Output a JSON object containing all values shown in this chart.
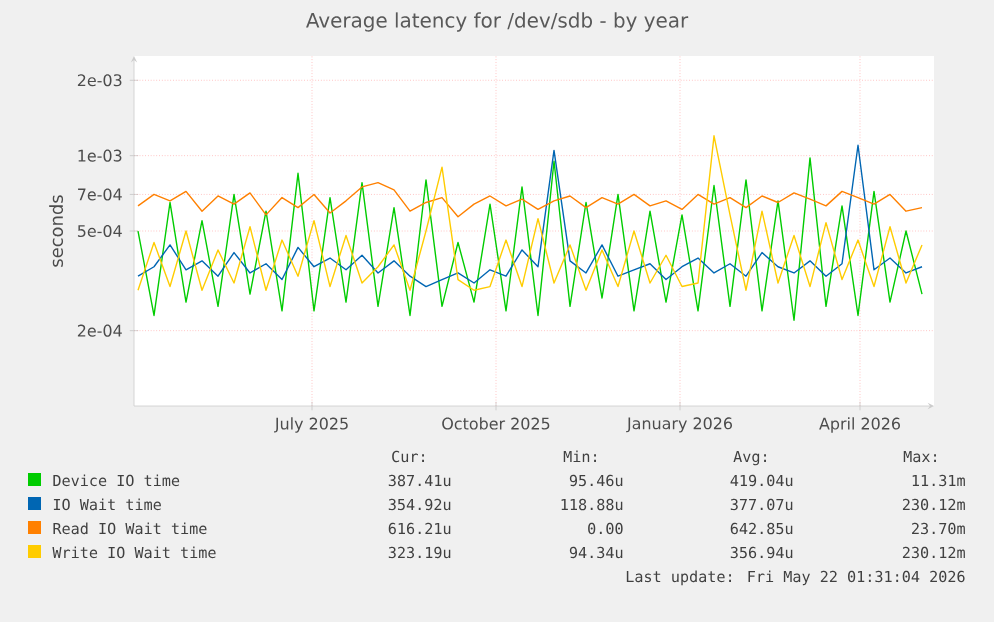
{
  "chart_data": {
    "type": "line",
    "title": "Average latency for /dev/sdb - by year",
    "ylabel": "seconds",
    "log": "y",
    "grid": true,
    "legend": "bottom",
    "line_style": "solid",
    "xlim": [
      "2025-04-03",
      "2026-05-08"
    ],
    "xticks": [
      {
        "value": "2025-07-01",
        "label": "July 2025"
      },
      {
        "value": "2025-10-01",
        "label": "October 2025"
      },
      {
        "value": "2026-01-01",
        "label": "January 2026"
      },
      {
        "value": "2026-04-01",
        "label": "April 2026"
      }
    ],
    "ylim": [
      0.0001,
      0.0025
    ],
    "yticks": [
      {
        "value": 0.0002,
        "label": "2e-04"
      },
      {
        "value": 0.0005,
        "label": "5e-04"
      },
      {
        "value": 0.0007,
        "label": "7e-04"
      },
      {
        "value": 0.001,
        "label": "1e-03"
      },
      {
        "value": 0.002,
        "label": "2e-03"
      }
    ],
    "x": [
      "2025-04-05",
      "2025-04-13",
      "2025-04-21",
      "2025-04-29",
      "2025-05-07",
      "2025-05-15",
      "2025-05-23",
      "2025-05-31",
      "2025-06-08",
      "2025-06-16",
      "2025-06-24",
      "2025-07-02",
      "2025-07-10",
      "2025-07-18",
      "2025-07-26",
      "2025-08-03",
      "2025-08-11",
      "2025-08-19",
      "2025-08-27",
      "2025-09-04",
      "2025-09-12",
      "2025-09-20",
      "2025-09-28",
      "2025-10-06",
      "2025-10-14",
      "2025-10-22",
      "2025-10-30",
      "2025-11-07",
      "2025-11-15",
      "2025-11-23",
      "2025-12-01",
      "2025-12-09",
      "2025-12-17",
      "2025-12-25",
      "2026-01-02",
      "2026-01-10",
      "2026-01-18",
      "2026-01-26",
      "2026-02-03",
      "2026-02-11",
      "2026-02-19",
      "2026-02-27",
      "2026-03-07",
      "2026-03-15",
      "2026-03-23",
      "2026-03-31",
      "2026-04-08",
      "2026-04-16",
      "2026-04-24",
      "2026-05-02"
    ],
    "series": [
      {
        "name": "Device IO time",
        "color": "#00cc00",
        "values": [
          0.0005,
          0.00023,
          0.00065,
          0.00026,
          0.00055,
          0.00025,
          0.0007,
          0.00028,
          0.0006,
          0.00024,
          0.00085,
          0.00024,
          0.00068,
          0.00026,
          0.00078,
          0.00025,
          0.00062,
          0.00023,
          0.0008,
          0.00025,
          0.00045,
          0.00026,
          0.00064,
          0.00024,
          0.00075,
          0.00023,
          0.00095,
          0.00025,
          0.00065,
          0.00027,
          0.0007,
          0.00024,
          0.0006,
          0.00026,
          0.00058,
          0.00024,
          0.00076,
          0.00025,
          0.0008,
          0.00024,
          0.00066,
          0.00022,
          0.00098,
          0.00025,
          0.00063,
          0.00023,
          0.00072,
          0.00026,
          0.0005,
          0.00028
        ]
      },
      {
        "name": "IO Wait time",
        "color": "#0066b3",
        "values": [
          0.00033,
          0.00036,
          0.00044,
          0.00035,
          0.00038,
          0.00033,
          0.00041,
          0.00034,
          0.00037,
          0.00032,
          0.00043,
          0.00036,
          0.00039,
          0.00035,
          0.0004,
          0.00034,
          0.00038,
          0.00033,
          0.0003,
          0.00032,
          0.00034,
          0.00031,
          0.00035,
          0.00033,
          0.00042,
          0.00036,
          0.00105,
          0.00038,
          0.00034,
          0.00044,
          0.00033,
          0.00035,
          0.00037,
          0.00032,
          0.00036,
          0.00039,
          0.00034,
          0.00037,
          0.00033,
          0.00041,
          0.00036,
          0.00034,
          0.00038,
          0.00033,
          0.00037,
          0.0011,
          0.00035,
          0.00039,
          0.00034,
          0.00036
        ]
      },
      {
        "name": "Read IO Wait time",
        "color": "#ff8000",
        "values": [
          0.00063,
          0.0007,
          0.00066,
          0.00072,
          0.0006,
          0.00069,
          0.00064,
          0.00071,
          0.00058,
          0.00068,
          0.00062,
          0.0007,
          0.00059,
          0.00066,
          0.00075,
          0.00078,
          0.00073,
          0.0006,
          0.00065,
          0.00068,
          0.00057,
          0.00064,
          0.00069,
          0.00063,
          0.00067,
          0.00061,
          0.00066,
          0.00069,
          0.00062,
          0.00068,
          0.00064,
          0.0007,
          0.00063,
          0.00066,
          0.00061,
          0.0007,
          0.00064,
          0.00068,
          0.00062,
          0.00069,
          0.00065,
          0.00071,
          0.00067,
          0.00063,
          0.00072,
          0.00068,
          0.00064,
          0.0007,
          0.0006,
          0.00062
        ]
      },
      {
        "name": "Write IO Wait time",
        "color": "#ffcc00",
        "values": [
          0.00029,
          0.00045,
          0.0003,
          0.0005,
          0.00029,
          0.00042,
          0.00031,
          0.00052,
          0.00029,
          0.00046,
          0.00033,
          0.00055,
          0.0003,
          0.00048,
          0.00031,
          0.00036,
          0.00044,
          0.00029,
          0.0005,
          0.0009,
          0.00032,
          0.00029,
          0.0003,
          0.00046,
          0.0003,
          0.00056,
          0.00031,
          0.00044,
          0.00029,
          0.00042,
          0.0003,
          0.0005,
          0.00031,
          0.0004,
          0.0003,
          0.00031,
          0.0012,
          0.00058,
          0.00029,
          0.0006,
          0.00031,
          0.00048,
          0.0003,
          0.00054,
          0.00032,
          0.00046,
          0.0003,
          0.00052,
          0.00031,
          0.00044
        ]
      }
    ],
    "annotations": [
      "Cur:",
      "Min:",
      "Avg:",
      "Max:",
      "387.41u",
      "95.46u",
      "419.04u",
      "11.31m",
      "354.92u",
      "118.88u",
      "377.07u",
      "230.12m",
      "616.21u",
      "0.00",
      "642.85u",
      "23.70m",
      "323.19u",
      "94.34u",
      "356.94u",
      "230.12m",
      "Last update: Fri May 22 01:31:04 2026"
    ]
  }
}
